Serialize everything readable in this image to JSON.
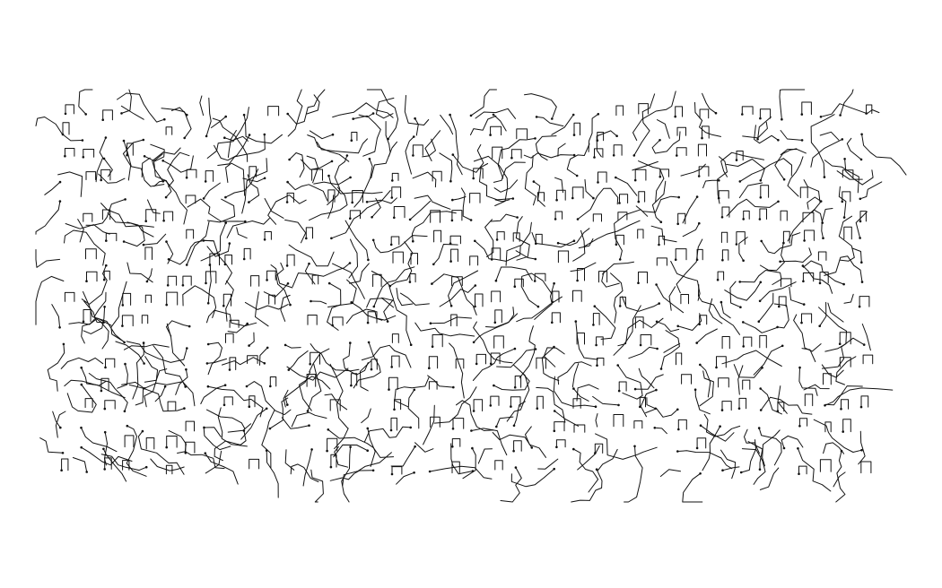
{
  "figure": {
    "background": "#ffffff",
    "stroke_color": "#111111",
    "grid_columns": 40,
    "grid_rows": 18,
    "random_seed": 20240611
  }
}
